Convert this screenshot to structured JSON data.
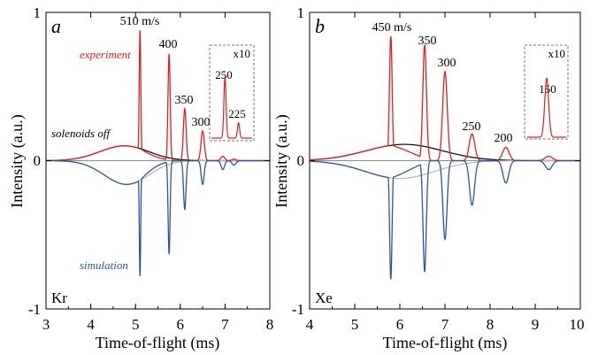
{
  "colors": {
    "experiment": "#e02020",
    "simulation": "#2a55a5",
    "solenoids_off": "#000000",
    "solenoids_off_sim": "#b5b5b5",
    "zero_line": "#8c8c8c"
  },
  "chart_data": [
    {
      "type": "line",
      "panel": "a",
      "element": "Kr",
      "xlabel": "Time-of-flight (ms)",
      "ylabel": "Intensity (a.u.)",
      "xlim": [
        3,
        8
      ],
      "ylim": [
        -1,
        1
      ],
      "x_ticks": [
        "3",
        "4",
        "5",
        "6",
        "7",
        "8"
      ],
      "y_ticks": [
        "-1",
        "0",
        "1"
      ],
      "annotations": {
        "experiment": "experiment",
        "solenoids_off": "solenoids off",
        "simulation": "simulation"
      },
      "peaks": [
        {
          "label": "510 m/s",
          "x": 5.1,
          "experiment": 0.88,
          "simulation": -0.78
        },
        {
          "label": "400",
          "x": 5.75,
          "experiment": 0.72,
          "simulation": -0.63
        },
        {
          "label": "350",
          "x": 6.1,
          "experiment": 0.35,
          "simulation": -0.33
        },
        {
          "label": "300",
          "x": 6.5,
          "experiment": 0.2,
          "simulation": -0.16
        },
        {
          "label": "",
          "x": 6.95,
          "experiment": 0.03,
          "simulation": -0.06
        },
        {
          "label": "",
          "x": 7.2,
          "experiment": 0.01,
          "simulation": -0.03
        }
      ],
      "broad_experiment": {
        "center": 4.75,
        "amplitude": 0.1
      },
      "broad_simulation": {
        "center": 4.8,
        "amplitude": -0.16
      },
      "inset": {
        "scale_label": "x10",
        "peaks": [
          {
            "label": "250",
            "x": 6.95,
            "value": 0.52
          },
          {
            "label": "225",
            "x": 7.2,
            "value": 0.13
          }
        ]
      }
    },
    {
      "type": "line",
      "panel": "b",
      "element": "Xe",
      "xlabel": "Time-of-flight (ms)",
      "ylabel": "Intensity (a.u.)",
      "xlim": [
        4,
        10
      ],
      "ylim": [
        -1,
        1
      ],
      "x_ticks": [
        "4",
        "5",
        "6",
        "7",
        "8",
        "9",
        "10"
      ],
      "y_ticks": [
        "-1",
        "0",
        "1"
      ],
      "peaks": [
        {
          "label": "450 m/s",
          "x": 5.8,
          "experiment": 0.84,
          "simulation": -0.8
        },
        {
          "label": "350",
          "x": 6.55,
          "experiment": 0.78,
          "simulation": -0.75
        },
        {
          "label": "300",
          "x": 7.0,
          "experiment": 0.6,
          "simulation": -0.53
        },
        {
          "label": "250",
          "x": 7.6,
          "experiment": 0.18,
          "simulation": -0.3
        },
        {
          "label": "200",
          "x": 8.35,
          "experiment": 0.09,
          "simulation": -0.15
        },
        {
          "label": "",
          "x": 9.3,
          "experiment": 0.03,
          "simulation": -0.06
        }
      ],
      "broad_experiment": {
        "center": 6.1,
        "amplitude": 0.11
      },
      "broad_simulation": {
        "center": 6.0,
        "amplitude": -0.12
      },
      "inset": {
        "scale_label": "x10",
        "peaks": [
          {
            "label": "150",
            "x": 9.3,
            "value": 0.4
          }
        ]
      }
    }
  ]
}
